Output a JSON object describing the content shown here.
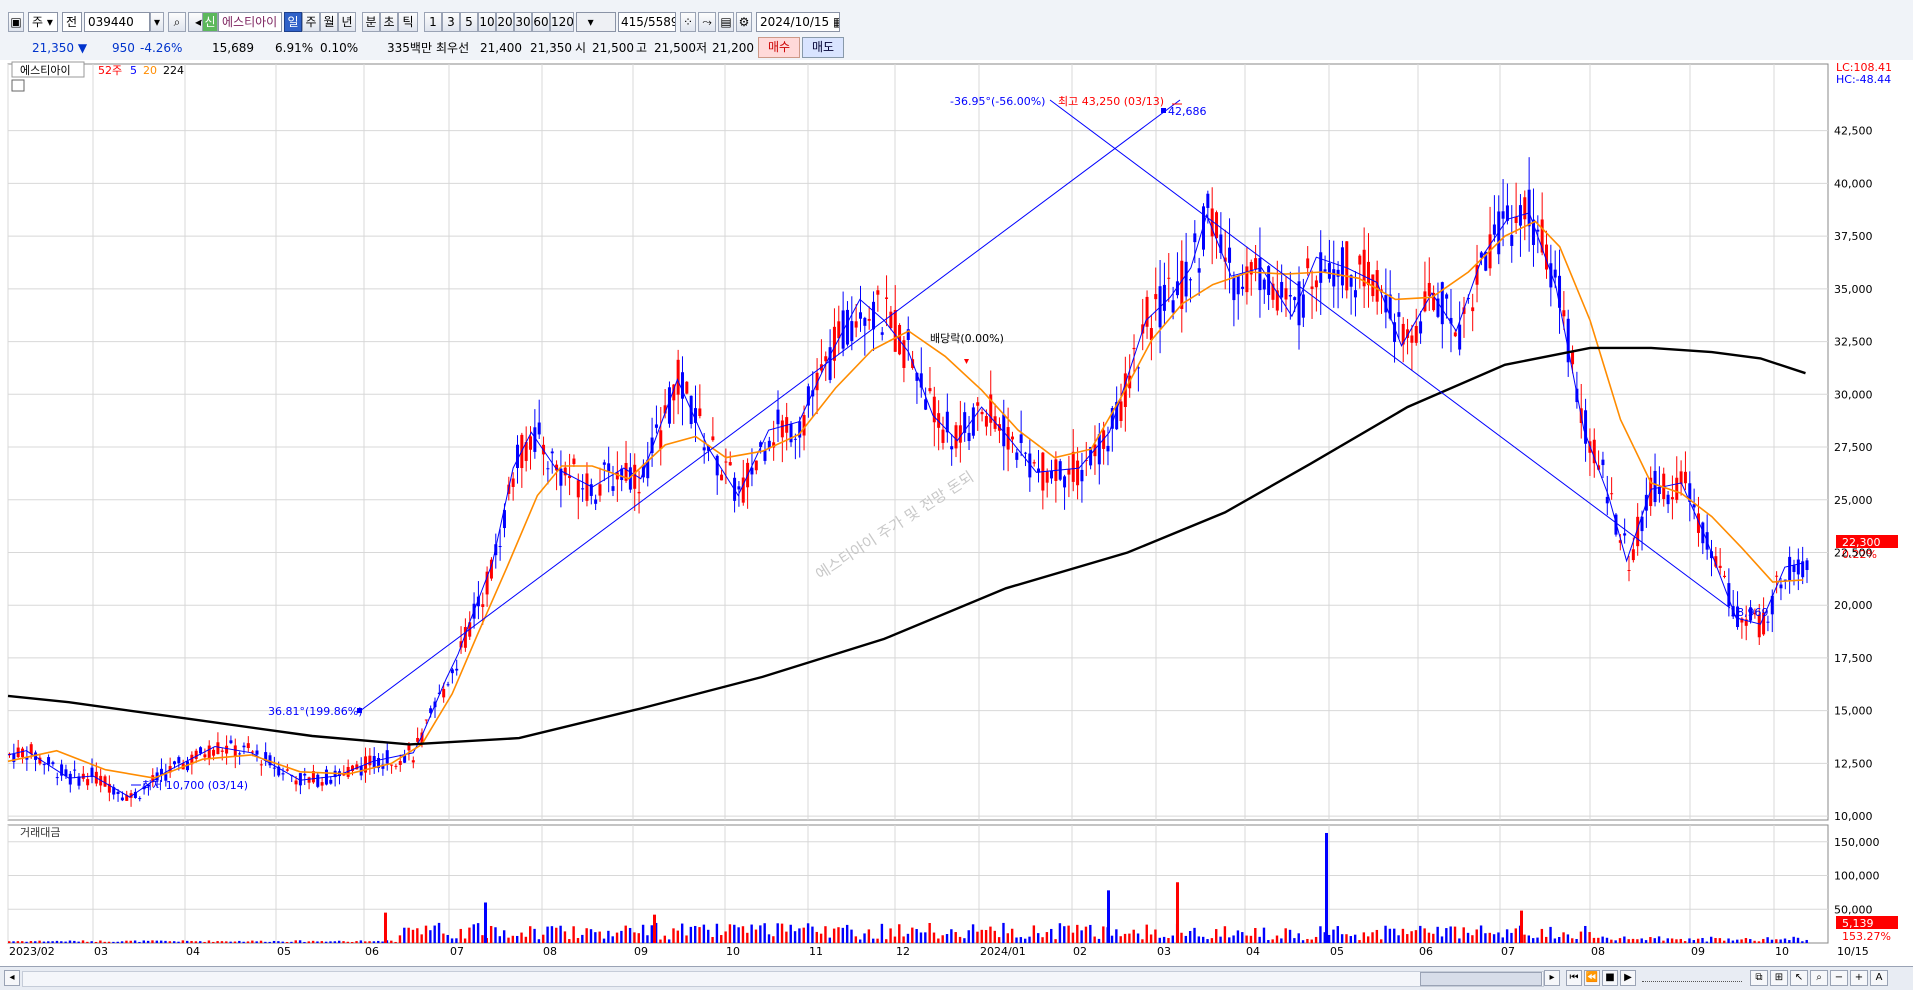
{
  "toolbar": {
    "period_select": "주",
    "market_select": "전",
    "stock_code": "039440",
    "stock_name": "에스티아이",
    "stock_badge": "신",
    "period_buttons": [
      "일",
      "주",
      "월",
      "년",
      "분",
      "초",
      "틱"
    ],
    "interval_buttons": [
      "1",
      "3",
      "5",
      "10",
      "20",
      "30",
      "60",
      "120"
    ],
    "count_display": "415",
    "count_total": "/5589",
    "date": "2024/10/15"
  },
  "quote": {
    "price": "21,350",
    "change": "950",
    "change_pct": "-4.26%",
    "volume": "15,689",
    "turnover_pct": "6.91%",
    "rate2": "0.10%",
    "trade_amount": "335백만",
    "best_label": "최우선",
    "best_ask": "21,400",
    "best_bid": "21,350",
    "open_label": "시",
    "open": "21,500",
    "high_label": "고",
    "high": "21,500",
    "low_label": "저",
    "low": "21,200",
    "buy_label": "매수",
    "sell_label": "매도"
  },
  "legend": {
    "stock": "에스티아이",
    "wk52": "52주",
    "ma5": "5",
    "ma20": "20",
    "ma224": "224"
  },
  "corner": {
    "lc": "LC:108.41",
    "hc": "HC:-48.44"
  },
  "annotations": {
    "high": "최고 43,250 (03/13)",
    "low": "최저 10,700 (03/14)",
    "trend_up": "36.81°(199.86%)",
    "trend_down": "-36.95°(-56.00%)",
    "point_high": "42,686",
    "point_low": "18,969",
    "dividend": "배당락(0.00%)",
    "watermark": "에스티아이 주가 및 전망 돈되",
    "price_tag": "22,300",
    "price_pct": "0.22%",
    "vol_tag": "5,139",
    "vol_pct": "153.27%"
  },
  "volume_panel": {
    "title": "거래대금"
  },
  "colors": {
    "up": "#ff0000",
    "down": "#0000ff",
    "ma5": "#0000ff",
    "ma20": "#ff8c00",
    "ma224": "#000000",
    "grid": "#d8d8d8"
  },
  "chart_data": [
    {
      "type": "candlestick",
      "title": "에스티아이",
      "y_axis_ticks": [
        "42,500",
        "40,000",
        "37,500",
        "35,000",
        "32,500",
        "30,000",
        "27,500",
        "25,000",
        "22,500",
        "20,000",
        "17,500",
        "15,000",
        "12,500",
        "10,000"
      ],
      "ylim": [
        8600,
        44600
      ],
      "x_tick_labels": [
        "2023/02",
        "03",
        "04",
        "05",
        "06",
        "07",
        "08",
        "09",
        "10",
        "11",
        "12",
        "2024/01",
        "02",
        "03",
        "04",
        "05",
        "06",
        "07",
        "08",
        "09",
        "10",
        "10/15"
      ],
      "series": [
        {
          "name": "5",
          "anchors": [
            [
              0,
              12900
            ],
            [
              15,
              13100
            ],
            [
              50,
              11800
            ],
            [
              70,
              11900
            ],
            [
              100,
              10900
            ],
            [
              130,
              12100
            ],
            [
              170,
              13300
            ],
            [
              200,
              13000
            ],
            [
              240,
              11700
            ],
            [
              270,
              11900
            ],
            [
              300,
              12600
            ],
            [
              333,
              13000
            ],
            [
              340,
              13800
            ],
            [
              360,
              16500
            ],
            [
              370,
              17700
            ],
            [
              380,
              19300
            ],
            [
              398,
              22000
            ],
            [
              415,
              26500
            ],
            [
              430,
              28200
            ],
            [
              450,
              26500
            ],
            [
              480,
              25600
            ],
            [
              506,
              26500
            ],
            [
              520,
              26000
            ],
            [
              550,
              30700
            ],
            [
              575,
              27500
            ],
            [
              600,
              25200
            ],
            [
              625,
              28300
            ],
            [
              650,
              28700
            ],
            [
              675,
              31800
            ],
            [
              700,
              34500
            ],
            [
              720,
              33500
            ],
            [
              740,
              32000
            ],
            [
              760,
              29000
            ],
            [
              780,
              27800
            ],
            [
              800,
              29400
            ],
            [
              820,
              28100
            ],
            [
              845,
              26300
            ],
            [
              880,
              26500
            ],
            [
              905,
              28200
            ],
            [
              935,
              33500
            ],
            [
              955,
              34600
            ],
            [
              972,
              36000
            ],
            [
              985,
              38500
            ],
            [
              1005,
              35600
            ],
            [
              1030,
              36000
            ],
            [
              1055,
              33700
            ],
            [
              1075,
              36500
            ],
            [
              1100,
              36000
            ],
            [
              1125,
              35300
            ],
            [
              1145,
              32300
            ],
            [
              1170,
              34800
            ],
            [
              1190,
              33000
            ],
            [
              1212,
              36600
            ],
            [
              1232,
              38300
            ],
            [
              1250,
              38600
            ],
            [
              1272,
              35100
            ],
            [
              1295,
              28300
            ],
            [
              1315,
              25200
            ],
            [
              1330,
              22100
            ],
            [
              1350,
              25500
            ],
            [
              1375,
              25800
            ],
            [
              1395,
              23200
            ],
            [
              1420,
              19400
            ],
            [
              1440,
              19100
            ],
            [
              1460,
              21800
            ],
            [
              1475,
              22000
            ]
          ]
        },
        {
          "name": "20",
          "anchors": [
            [
              0,
              12600
            ],
            [
              40,
              13100
            ],
            [
              80,
              12200
            ],
            [
              120,
              11800
            ],
            [
              160,
              12700
            ],
            [
              200,
              12900
            ],
            [
              240,
              12100
            ],
            [
              280,
              12000
            ],
            [
              315,
              12500
            ],
            [
              340,
              13400
            ],
            [
              365,
              15800
            ],
            [
              385,
              18500
            ],
            [
              410,
              21800
            ],
            [
              435,
              25200
            ],
            [
              455,
              26600
            ],
            [
              480,
              26600
            ],
            [
              510,
              26000
            ],
            [
              540,
              27600
            ],
            [
              565,
              28000
            ],
            [
              590,
              27000
            ],
            [
              620,
              27300
            ],
            [
              650,
              28100
            ],
            [
              680,
              30300
            ],
            [
              710,
              32100
            ],
            [
              740,
              33000
            ],
            [
              770,
              31800
            ],
            [
              800,
              30200
            ],
            [
              830,
              28300
            ],
            [
              860,
              27000
            ],
            [
              890,
              27400
            ],
            [
              915,
              29900
            ],
            [
              940,
              32600
            ],
            [
              965,
              34300
            ],
            [
              990,
              35200
            ],
            [
              1020,
              35800
            ],
            [
              1050,
              35700
            ],
            [
              1080,
              35800
            ],
            [
              1110,
              35500
            ],
            [
              1140,
              34500
            ],
            [
              1170,
              34600
            ],
            [
              1200,
              35800
            ],
            [
              1230,
              37500
            ],
            [
              1255,
              38200
            ],
            [
              1275,
              37000
            ],
            [
              1300,
              33500
            ],
            [
              1325,
              28800
            ],
            [
              1350,
              25800
            ],
            [
              1375,
              25300
            ],
            [
              1400,
              24200
            ],
            [
              1425,
              22700
            ],
            [
              1450,
              21100
            ],
            [
              1475,
              21200
            ]
          ]
        },
        {
          "name": "224",
          "anchors": [
            [
              0,
              15700
            ],
            [
              50,
              15400
            ],
            [
              150,
              14600
            ],
            [
              250,
              13800
            ],
            [
              330,
              13400
            ],
            [
              420,
              13700
            ],
            [
              520,
              15100
            ],
            [
              620,
              16600
            ],
            [
              720,
              18400
            ],
            [
              820,
              20800
            ],
            [
              920,
              22500
            ],
            [
              1000,
              24400
            ],
            [
              1070,
              26700
            ],
            [
              1150,
              29400
            ],
            [
              1230,
              31400
            ],
            [
              1300,
              32200
            ],
            [
              1350,
              32200
            ],
            [
              1400,
              32000
            ],
            [
              1440,
              31700
            ],
            [
              1477,
              31000
            ]
          ]
        }
      ],
      "annotations": [
        {
          "label": "최고",
          "value": 43250,
          "date": "03/13"
        },
        {
          "label": "최저",
          "value": 10700,
          "date": "03/14"
        }
      ]
    },
    {
      "type": "bar",
      "title": "거래대금",
      "y_axis_ticks": [
        "150,000",
        "100,000",
        "50,000"
      ],
      "ylim": [
        0,
        175000
      ],
      "peaks": [
        {
          "date": "2023/06",
          "value": 45000
        },
        {
          "date": "2023/07",
          "value": 60000
        },
        {
          "date": "2023/09",
          "value": 42000
        },
        {
          "date": "2024/02",
          "value": 78000
        },
        {
          "date": "2024/03",
          "value": 90000
        },
        {
          "date": "2024/04",
          "value": 163000
        },
        {
          "date": "2024/07",
          "value": 48000
        }
      ]
    }
  ]
}
